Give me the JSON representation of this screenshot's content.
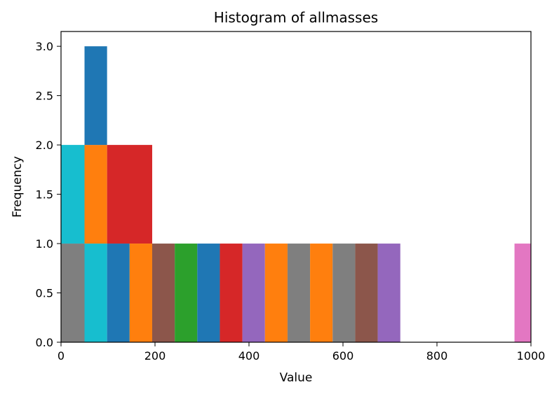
{
  "chart_data": {
    "type": "bar",
    "title": "Histogram of allmasses",
    "xlabel": "Value",
    "ylabel": "Frequency",
    "xlim": [
      0,
      1000
    ],
    "ylim": [
      0,
      3.15
    ],
    "xticks": [
      "0",
      "200",
      "400",
      "600",
      "800",
      "1000"
    ],
    "yticks": [
      "0.0",
      "0.5",
      "1.0",
      "1.5",
      "2.0",
      "2.5",
      "3.0"
    ],
    "grid": false,
    "bars": [
      {
        "x0": 0,
        "x1": 50,
        "y0": 0,
        "y1": 1,
        "color": "#7f7f7f"
      },
      {
        "x0": 0,
        "x1": 50,
        "y0": 1,
        "y1": 2,
        "color": "#17becf"
      },
      {
        "x0": 50,
        "x1": 98,
        "y0": 0,
        "y1": 1,
        "color": "#17becf"
      },
      {
        "x0": 50,
        "x1": 98,
        "y0": 1,
        "y1": 2,
        "color": "#ff7f0e"
      },
      {
        "x0": 50,
        "x1": 98,
        "y0": 2,
        "y1": 3,
        "color": "#1f77b4"
      },
      {
        "x0": 98,
        "x1": 146,
        "y0": 0,
        "y1": 1,
        "color": "#1f77b4"
      },
      {
        "x0": 98,
        "x1": 194,
        "y0": 1,
        "y1": 2,
        "color": "#d62728"
      },
      {
        "x0": 146,
        "x1": 194,
        "y0": 0,
        "y1": 1,
        "color": "#ff7f0e"
      },
      {
        "x0": 194,
        "x1": 242,
        "y0": 0,
        "y1": 1,
        "color": "#8c564b"
      },
      {
        "x0": 242,
        "x1": 290,
        "y0": 0,
        "y1": 1,
        "color": "#2ca02c"
      },
      {
        "x0": 290,
        "x1": 338,
        "y0": 0,
        "y1": 1,
        "color": "#1f77b4"
      },
      {
        "x0": 338,
        "x1": 386,
        "y0": 0,
        "y1": 1,
        "color": "#d62728"
      },
      {
        "x0": 386,
        "x1": 434,
        "y0": 0,
        "y1": 1,
        "color": "#9467bd"
      },
      {
        "x0": 434,
        "x1": 482,
        "y0": 0,
        "y1": 1,
        "color": "#ff7f0e"
      },
      {
        "x0": 482,
        "x1": 530,
        "y0": 0,
        "y1": 1,
        "color": "#7f7f7f"
      },
      {
        "x0": 530,
        "x1": 578,
        "y0": 0,
        "y1": 1,
        "color": "#ff7f0e"
      },
      {
        "x0": 578,
        "x1": 626,
        "y0": 0,
        "y1": 1,
        "color": "#7f7f7f"
      },
      {
        "x0": 626,
        "x1": 674,
        "y0": 0,
        "y1": 1,
        "color": "#8c564b"
      },
      {
        "x0": 674,
        "x1": 722,
        "y0": 0,
        "y1": 1,
        "color": "#9467bd"
      },
      {
        "x0": 965,
        "x1": 1000,
        "y0": 0,
        "y1": 1,
        "color": "#e377c2"
      }
    ]
  }
}
